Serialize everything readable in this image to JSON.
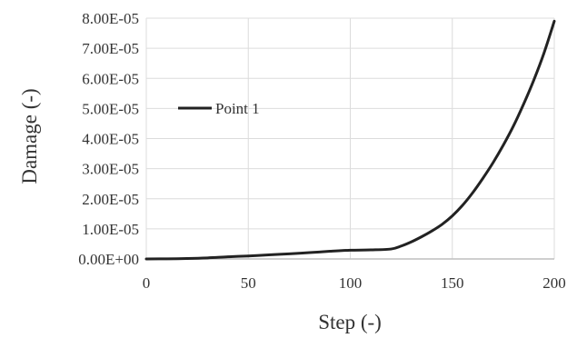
{
  "chart_data": {
    "type": "line",
    "title": "",
    "xlabel": "Step (-)",
    "ylabel": "Damage (-)",
    "xlim": [
      0,
      200
    ],
    "ylim": [
      0,
      8e-05
    ],
    "x_ticks": [
      0,
      50,
      100,
      150,
      200
    ],
    "x_tick_labels": [
      "0",
      "50",
      "100",
      "150",
      "200"
    ],
    "y_ticks": [
      0,
      1e-05,
      2e-05,
      3e-05,
      4e-05,
      5e-05,
      6e-05,
      7e-05,
      8e-05
    ],
    "y_tick_labels": [
      "0.00E+00",
      "1.00E-05",
      "2.00E-05",
      "3.00E-05",
      "4.00E-05",
      "5.00E-05",
      "6.00E-05",
      "7.00E-05",
      "8.00E-05"
    ],
    "grid": true,
    "legend_position": "left",
    "series": [
      {
        "name": "Point 1",
        "color": "#222222",
        "x": [
          0,
          10,
          20,
          30,
          40,
          50,
          60,
          70,
          80,
          90,
          100,
          110,
          120,
          125,
          130,
          135,
          140,
          145,
          150,
          155,
          160,
          165,
          170,
          175,
          180,
          185,
          190,
          195,
          200
        ],
        "y": [
          0,
          5e-08,
          1.5e-07,
          3.5e-07,
          7e-07,
          1e-06,
          1.35e-06,
          1.7e-06,
          2.1e-06,
          2.55e-06,
          2.9e-06,
          3e-06,
          3.3e-06,
          4.3e-06,
          5.7e-06,
          7.4e-06,
          9.3e-06,
          1.15e-05,
          1.43e-05,
          1.78e-05,
          2.2e-05,
          2.68e-05,
          3.2e-05,
          3.78e-05,
          4.42e-05,
          5.15e-05,
          5.95e-05,
          6.85e-05,
          7.9e-05
        ]
      }
    ]
  }
}
